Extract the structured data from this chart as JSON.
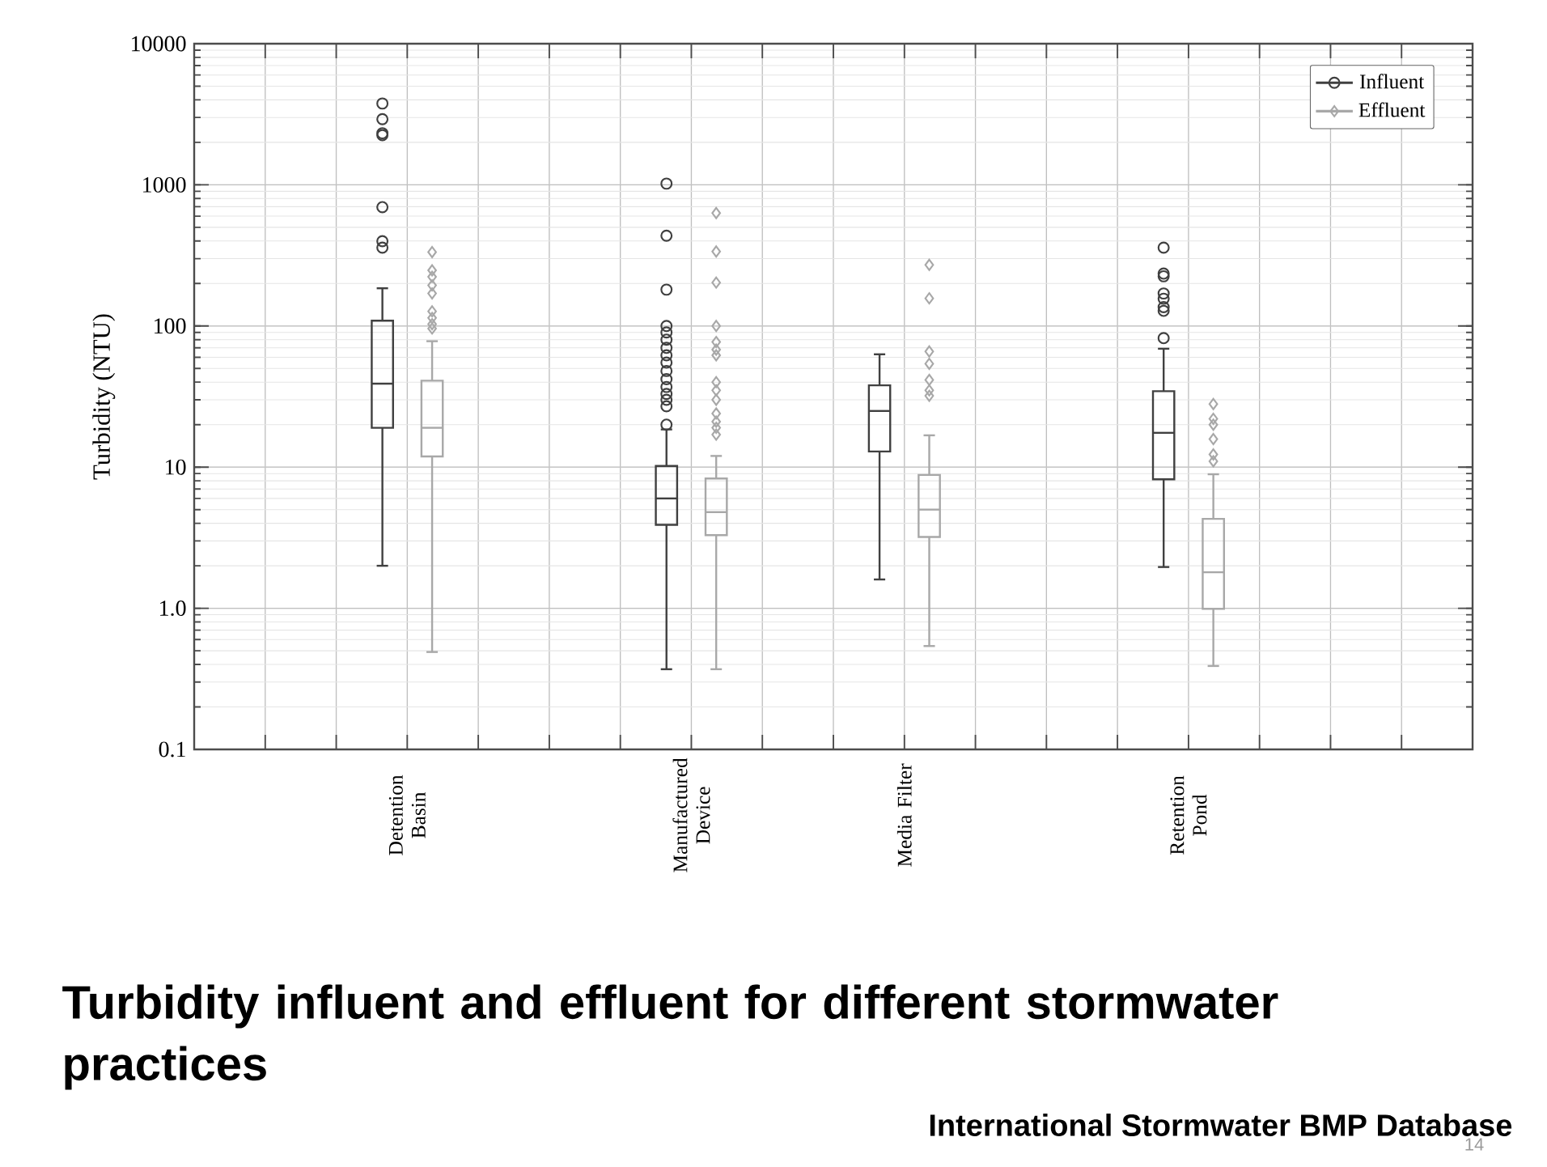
{
  "chart_data": {
    "type": "box",
    "title": "Turbidity influent and effluent for different stormwater practices",
    "ylabel": "Turbidity (NTU)",
    "categories": [
      null,
      null,
      "Detention Basin",
      null,
      null,
      null,
      "Manufactured Device",
      null,
      null,
      "Media Filter",
      null,
      null,
      null,
      "Retention Pond",
      null,
      null,
      null
    ],
    "series": [
      {
        "name": "Influent",
        "color": "#404040",
        "marker": "circle",
        "boxes": [
          null,
          null,
          {
            "low": 2.0,
            "q1": 19,
            "median": 39,
            "q3": 109,
            "high": 185,
            "outliers": [
              3770,
              2920,
              2320,
              2250,
              695,
              399,
              359
            ]
          },
          null,
          null,
          null,
          {
            "low": 0.37,
            "q1": 3.9,
            "median": 6.0,
            "q3": 10.2,
            "high": 18.5,
            "outliers": [
              1020,
              436,
              181,
              100,
              90,
              80,
              70,
              62,
              55,
              48,
              42,
              37,
              33,
              30,
              27,
              20
            ]
          },
          null,
          null,
          {
            "low": 1.6,
            "q1": 12.9,
            "median": 25,
            "q3": 38,
            "high": 63
          },
          null,
          null,
          null,
          {
            "low": 1.96,
            "q1": 8.2,
            "median": 17.5,
            "q3": 34.5,
            "high": 69,
            "outliers": [
              359,
              235,
              225,
              170,
              156,
              136,
              128,
              82
            ]
          },
          null,
          null,
          null
        ]
      },
      {
        "name": "Effluent",
        "color": "#a8a8a8",
        "marker": "diamond",
        "boxes": [
          null,
          null,
          {
            "low": 0.49,
            "q1": 11.9,
            "median": 19,
            "q3": 41,
            "high": 78,
            "outliers": [
              334,
              248,
              223,
              194,
              170,
              127,
              114,
              103,
              96
            ]
          },
          null,
          null,
          null,
          {
            "low": 0.37,
            "q1": 3.3,
            "median": 4.8,
            "q3": 8.3,
            "high": 12,
            "outliers": [
              631,
              337,
              203,
              100,
              77,
              68,
              62,
              40,
              35,
              30,
              24,
              21,
              19,
              17
            ]
          },
          null,
          null,
          {
            "low": 0.54,
            "q1": 3.2,
            "median": 5.0,
            "q3": 8.8,
            "high": 16.8,
            "outliers": [
              271,
              157,
              66,
              54,
              41.5,
              35,
              32
            ]
          },
          null,
          null,
          null,
          {
            "low": 0.39,
            "q1": 0.99,
            "median": 1.8,
            "q3": 4.3,
            "high": 8.9,
            "outliers": [
              28,
              22,
              20,
              15.8,
              12.3,
              11
            ]
          },
          null,
          null,
          null
        ]
      }
    ],
    "log": true,
    "ylim": [
      0.1,
      10000
    ],
    "yticks": [
      0.1,
      {
        "value": 1,
        "label": "1.0"
      },
      10,
      100,
      1000,
      10000
    ],
    "grid": true,
    "legend": "top right",
    "annotations": [
      "International Stormwater BMP Database",
      "14"
    ]
  }
}
